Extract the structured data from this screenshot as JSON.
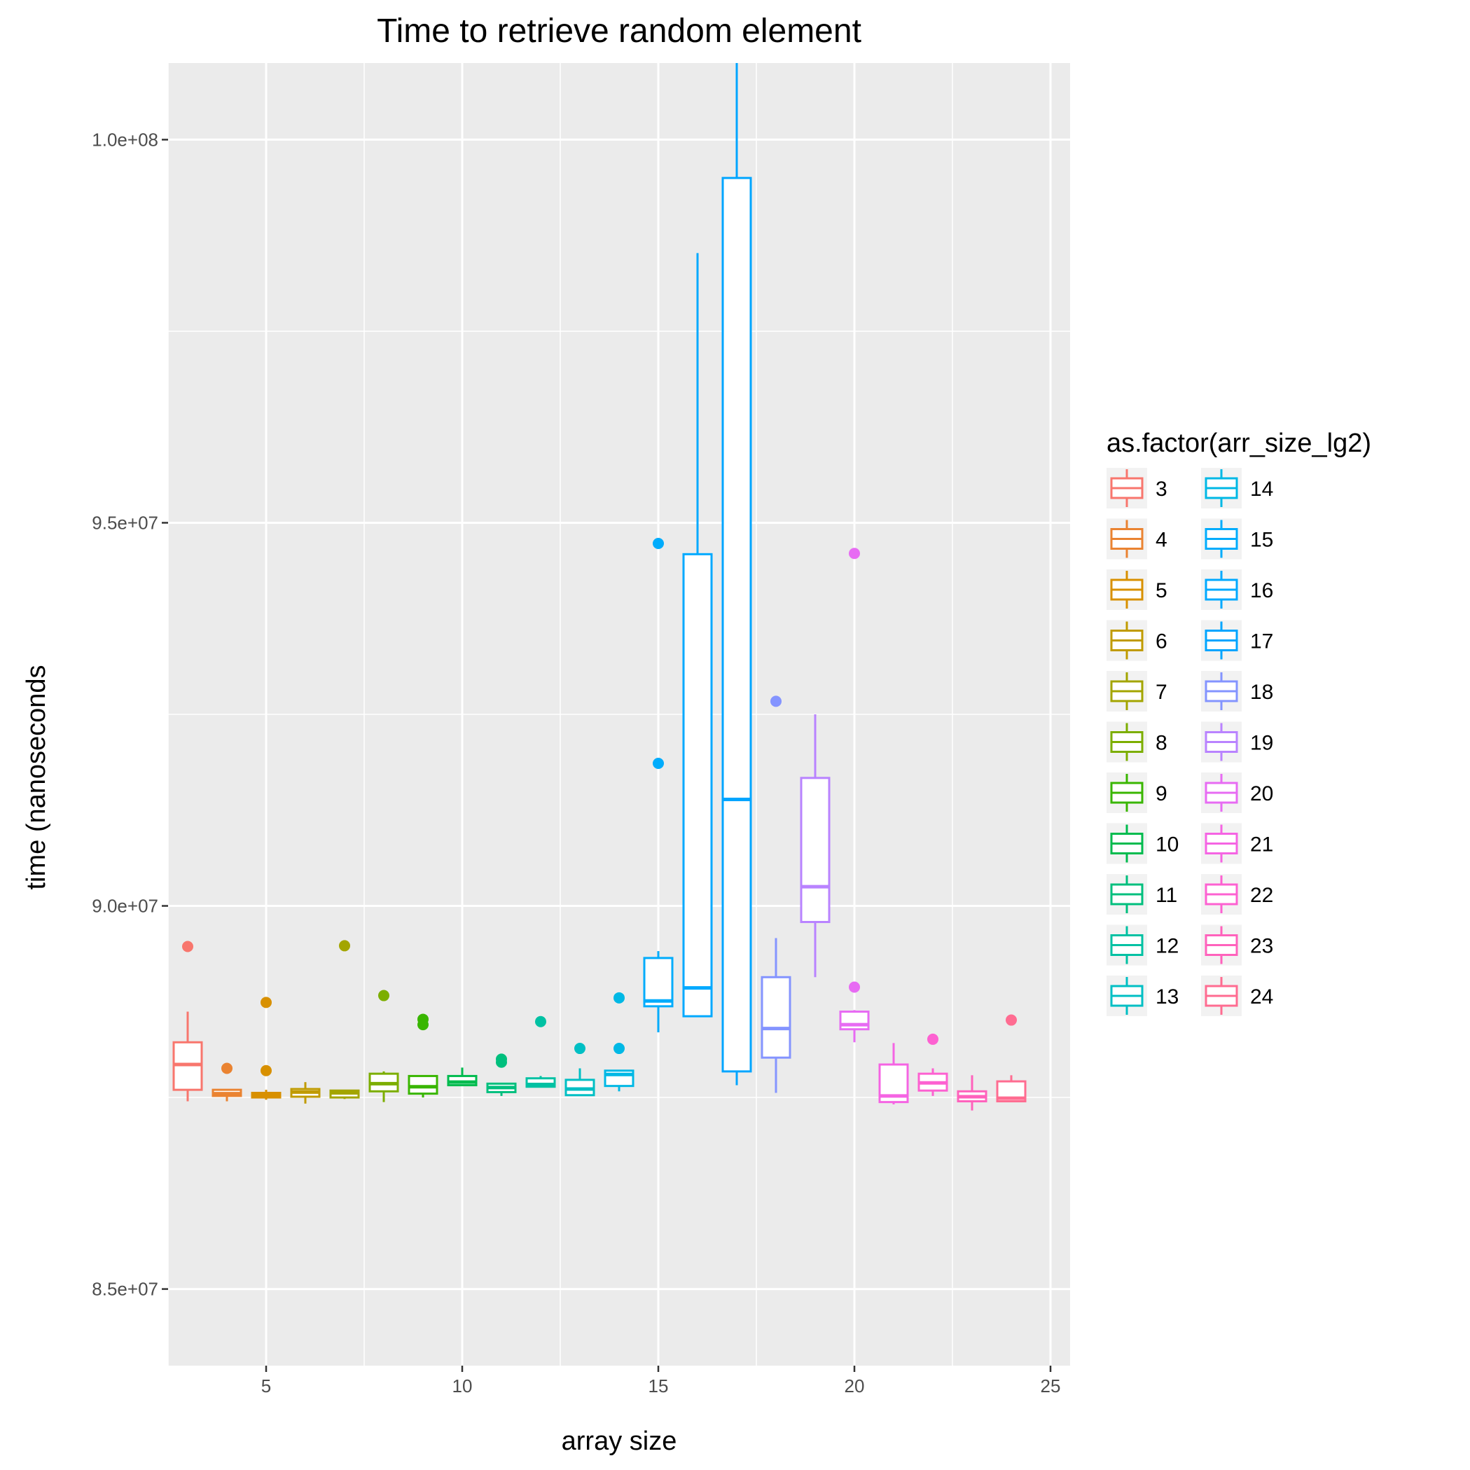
{
  "chart_data": {
    "type": "box",
    "title": "Time to retrieve random element",
    "xlabel": "array size",
    "ylabel": "time (nanoseconds",
    "xlim": [
      2.5,
      25.5
    ],
    "ylim": [
      84000000,
      101000000
    ],
    "x_ticks": [
      5,
      10,
      15,
      20,
      25
    ],
    "x_tick_labels": [
      "5",
      "10",
      "15",
      "20",
      "25"
    ],
    "y_ticks": [
      85000000,
      90000000,
      95000000,
      100000000
    ],
    "y_tick_labels": [
      "8.5e+07",
      "9.0e+07",
      "9.5e+07",
      "1.0e+08"
    ],
    "grid": true,
    "legend": {
      "title": "as.factor(arr_size_lg2)",
      "position": "right"
    },
    "series": [
      {
        "name": "3",
        "x": 3,
        "color": "#F8766D",
        "min": 87450000,
        "q1": 87600000,
        "median": 87930000,
        "q3": 88220000,
        "max": 88620000,
        "outliers": [
          89470000
        ]
      },
      {
        "name": "4",
        "x": 4,
        "color": "#EA8331",
        "min": 87450000,
        "q1": 87520000,
        "median": 87550000,
        "q3": 87600000,
        "max": 87600000,
        "outliers": [
          87880000
        ]
      },
      {
        "name": "5",
        "x": 5,
        "color": "#D89000",
        "min": 87470000,
        "q1": 87500000,
        "median": 87530000,
        "q3": 87560000,
        "max": 87600000,
        "outliers": [
          88740000,
          87850000
        ]
      },
      {
        "name": "6",
        "x": 6,
        "color": "#C09B00",
        "min": 87420000,
        "q1": 87510000,
        "median": 87570000,
        "q3": 87610000,
        "max": 87700000,
        "outliers": []
      },
      {
        "name": "7",
        "x": 7,
        "color": "#A3A500",
        "min": 87480000,
        "q1": 87500000,
        "median": 87560000,
        "q3": 87590000,
        "max": 87590000,
        "outliers": [
          89480000
        ]
      },
      {
        "name": "8",
        "x": 8,
        "color": "#7CAE00",
        "min": 87440000,
        "q1": 87580000,
        "median": 87680000,
        "q3": 87810000,
        "max": 87840000,
        "outliers": [
          88830000
        ]
      },
      {
        "name": "9",
        "x": 9,
        "color": "#39B600",
        "min": 87500000,
        "q1": 87550000,
        "median": 87640000,
        "q3": 87780000,
        "max": 87780000,
        "outliers": [
          88520000,
          88450000
        ]
      },
      {
        "name": "10",
        "x": 10,
        "color": "#00BB4E",
        "min": 87650000,
        "q1": 87660000,
        "median": 87700000,
        "q3": 87780000,
        "max": 87890000,
        "outliers": []
      },
      {
        "name": "11",
        "x": 11,
        "color": "#00BF7D",
        "min": 87520000,
        "q1": 87570000,
        "median": 87630000,
        "q3": 87680000,
        "max": 87680000,
        "outliers": [
          88000000,
          87960000
        ]
      },
      {
        "name": "12",
        "x": 12,
        "color": "#00C1A3",
        "min": 87640000,
        "q1": 87640000,
        "median": 87670000,
        "q3": 87750000,
        "max": 87780000,
        "outliers": [
          88490000
        ]
      },
      {
        "name": "13",
        "x": 13,
        "color": "#00BFC4",
        "min": 87530000,
        "q1": 87530000,
        "median": 87610000,
        "q3": 87730000,
        "max": 87880000,
        "outliers": [
          88140000
        ]
      },
      {
        "name": "14",
        "x": 14,
        "color": "#00B8E5",
        "min": 87580000,
        "q1": 87650000,
        "median": 87800000,
        "q3": 87850000,
        "max": 87850000,
        "outliers": [
          88800000,
          88140000
        ]
      },
      {
        "name": "15",
        "x": 15,
        "color": "#00ACFC",
        "min": 88350000,
        "q1": 88690000,
        "median": 88760000,
        "q3": 89320000,
        "max": 89410000,
        "outliers": [
          94730000,
          91860000
        ]
      },
      {
        "name": "16",
        "x": 16,
        "color": "#00A9FF",
        "min": 88560000,
        "q1": 88560000,
        "median": 88930000,
        "q3": 94590000,
        "max": 98520000,
        "outliers": []
      },
      {
        "name": "17",
        "x": 17,
        "color": "#00A5FF",
        "min": 87660000,
        "q1": 87840000,
        "median": 91390000,
        "q3": 99500000,
        "max": 101000000,
        "outliers": []
      },
      {
        "name": "18",
        "x": 18,
        "color": "#8494FF",
        "min": 87560000,
        "q1": 88020000,
        "median": 88400000,
        "q3": 89070000,
        "max": 89580000,
        "outliers": [
          92670000
        ]
      },
      {
        "name": "19",
        "x": 19,
        "color": "#B983FF",
        "min": 89070000,
        "q1": 89790000,
        "median": 90250000,
        "q3": 91670000,
        "max": 92500000,
        "outliers": []
      },
      {
        "name": "20",
        "x": 20,
        "color": "#E76BF3",
        "min": 88220000,
        "q1": 88390000,
        "median": 88450000,
        "q3": 88620000,
        "max": 88640000,
        "outliers": [
          94600000,
          88940000
        ]
      },
      {
        "name": "21",
        "x": 21,
        "color": "#F564E3",
        "min": 87410000,
        "q1": 87440000,
        "median": 87520000,
        "q3": 87930000,
        "max": 88210000,
        "outliers": []
      },
      {
        "name": "22",
        "x": 22,
        "color": "#FD61D1",
        "min": 87520000,
        "q1": 87590000,
        "median": 87690000,
        "q3": 87810000,
        "max": 87880000,
        "outliers": [
          88260000
        ]
      },
      {
        "name": "23",
        "x": 23,
        "color": "#FF62BC",
        "min": 87330000,
        "q1": 87450000,
        "median": 87510000,
        "q3": 87580000,
        "max": 87790000,
        "outliers": []
      },
      {
        "name": "24",
        "x": 24,
        "color": "#FF6C91",
        "min": 87440000,
        "q1": 87450000,
        "median": 87490000,
        "q3": 87710000,
        "max": 87790000,
        "outliers": [
          88510000
        ]
      }
    ]
  }
}
